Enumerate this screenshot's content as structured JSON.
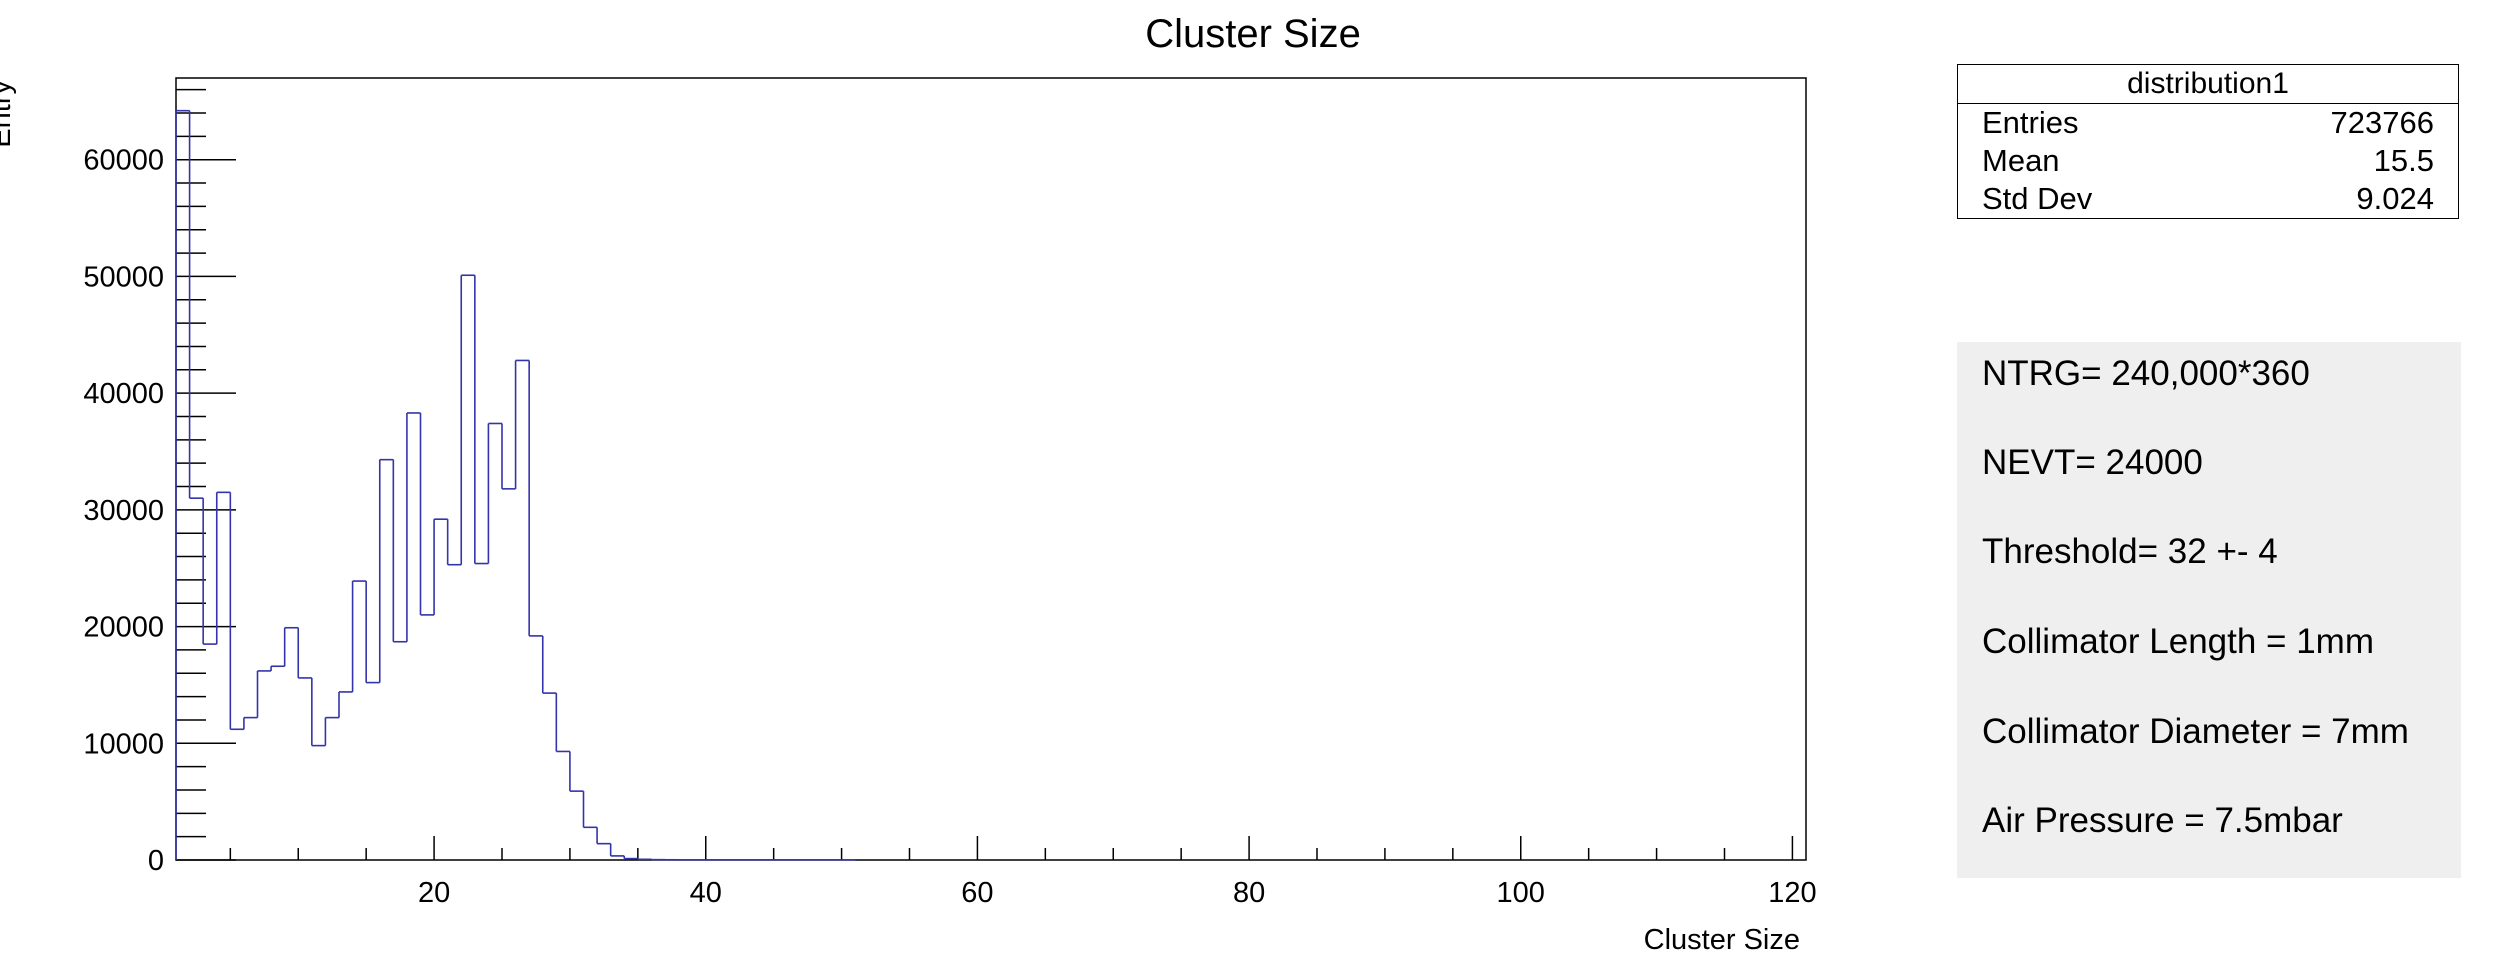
{
  "chart_data": {
    "type": "histogram",
    "title": "Cluster Size",
    "xlabel": "Cluster Size",
    "ylabel": "Entry",
    "xlim": [
      1,
      121
    ],
    "ylim": [
      0,
      67000
    ],
    "xticks": [
      20,
      40,
      60,
      80,
      100,
      120
    ],
    "yticks": [
      0,
      10000,
      20000,
      30000,
      40000,
      50000,
      60000
    ],
    "grid": false,
    "line_color": "#3333aa",
    "bin_width": 1,
    "bins": [
      {
        "x0": 1,
        "x1": 2,
        "y": 64200
      },
      {
        "x0": 2,
        "x1": 3,
        "y": 31000
      },
      {
        "x0": 3,
        "x1": 4,
        "y": 18500
      },
      {
        "x0": 4,
        "x1": 5,
        "y": 31500
      },
      {
        "x0": 5,
        "x1": 6,
        "y": 11200
      },
      {
        "x0": 6,
        "x1": 7,
        "y": 12200
      },
      {
        "x0": 7,
        "x1": 8,
        "y": 16200
      },
      {
        "x0": 8,
        "x1": 9,
        "y": 16600
      },
      {
        "x0": 9,
        "x1": 10,
        "y": 19900
      },
      {
        "x0": 10,
        "x1": 11,
        "y": 15600
      },
      {
        "x0": 11,
        "x1": 12,
        "y": 9800
      },
      {
        "x0": 12,
        "x1": 13,
        "y": 12200
      },
      {
        "x0": 13,
        "x1": 14,
        "y": 14400
      },
      {
        "x0": 14,
        "x1": 15,
        "y": 23900
      },
      {
        "x0": 15,
        "x1": 16,
        "y": 15200
      },
      {
        "x0": 16,
        "x1": 17,
        "y": 34300
      },
      {
        "x0": 17,
        "x1": 18,
        "y": 18700
      },
      {
        "x0": 18,
        "x1": 19,
        "y": 38300
      },
      {
        "x0": 19,
        "x1": 20,
        "y": 21000
      },
      {
        "x0": 20,
        "x1": 21,
        "y": 29200
      },
      {
        "x0": 21,
        "x1": 22,
        "y": 25300
      },
      {
        "x0": 22,
        "x1": 23,
        "y": 50100
      },
      {
        "x0": 23,
        "x1": 24,
        "y": 25400
      },
      {
        "x0": 24,
        "x1": 25,
        "y": 37400
      },
      {
        "x0": 25,
        "x1": 26,
        "y": 31800
      },
      {
        "x0": 26,
        "x1": 27,
        "y": 42800
      },
      {
        "x0": 27,
        "x1": 28,
        "y": 19200
      },
      {
        "x0": 28,
        "x1": 29,
        "y": 14300
      },
      {
        "x0": 29,
        "x1": 30,
        "y": 9300
      },
      {
        "x0": 30,
        "x1": 31,
        "y": 5900
      },
      {
        "x0": 31,
        "x1": 32,
        "y": 2800
      },
      {
        "x0": 32,
        "x1": 33,
        "y": 1400
      },
      {
        "x0": 33,
        "x1": 34,
        "y": 350
      },
      {
        "x0": 34,
        "x1": 35,
        "y": 120
      },
      {
        "x0": 35,
        "x1": 36,
        "y": 60
      },
      {
        "x0": 36,
        "x1": 37,
        "y": 30
      },
      {
        "x0": 37,
        "x1": 38,
        "y": 20
      },
      {
        "x0": 38,
        "x1": 51,
        "y": 10
      }
    ]
  },
  "stats": {
    "title": "distribution1",
    "rows": [
      {
        "label": "Entries",
        "value": "723766"
      },
      {
        "label": "Mean",
        "value": "15.5"
      },
      {
        "label": "Std Dev",
        "value": "9.024"
      }
    ]
  },
  "info": {
    "lines": [
      "NTRG= 240,000*360",
      "NEVT= 24000",
      "Threshold= 32 +- 4",
      "Collimator Length = 1mm",
      "Collimator Diameter = 7mm",
      "Air Pressure = 7.5mbar"
    ]
  }
}
